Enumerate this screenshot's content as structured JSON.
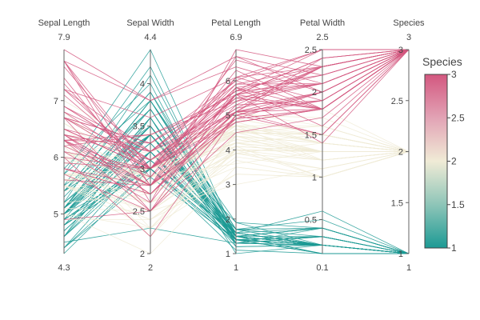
{
  "chart_data": {
    "type": "parcoords",
    "dimensions": [
      {
        "key": "sepal_length",
        "label": "Sepal Length",
        "range": [
          4.3,
          7.9
        ],
        "range_labels": [
          "4.3",
          "7.9"
        ],
        "ticks": [
          5,
          6,
          7
        ],
        "tick_labels": [
          "5",
          "6",
          "7"
        ]
      },
      {
        "key": "sepal_width",
        "label": "Sepal Width",
        "range": [
          2,
          4.4
        ],
        "range_labels": [
          "2",
          "4.4"
        ],
        "ticks": [
          2,
          2.5,
          3,
          3.5,
          4
        ],
        "tick_labels": [
          "2",
          "2.5",
          "3",
          "3.5",
          "4"
        ]
      },
      {
        "key": "petal_length",
        "label": "Petal Length",
        "range": [
          1,
          6.9
        ],
        "range_labels": [
          "1",
          "6.9"
        ],
        "ticks": [
          1,
          2,
          3,
          4,
          5,
          6
        ],
        "tick_labels": [
          "1",
          "2",
          "3",
          "4",
          "5",
          "6"
        ]
      },
      {
        "key": "petal_width",
        "label": "Petal Width",
        "range": [
          0.1,
          2.5
        ],
        "range_labels": [
          "0.1",
          "2.5"
        ],
        "ticks": [
          0.5,
          1,
          1.5,
          2,
          2.5
        ],
        "tick_labels": [
          "0.5",
          "1",
          "1.5",
          "2",
          "2.5"
        ]
      },
      {
        "key": "species",
        "label": "Species",
        "range": [
          1,
          3
        ],
        "range_labels": [
          "1",
          "3"
        ],
        "ticks": [
          1,
          1.5,
          2,
          2.5,
          3
        ],
        "tick_labels": [
          "1",
          "1.5",
          "2",
          "2.5",
          "3"
        ]
      }
    ],
    "records": [
      [
        5.1,
        3.5,
        1.4,
        0.2,
        1
      ],
      [
        4.9,
        3.0,
        1.4,
        0.2,
        1
      ],
      [
        4.7,
        3.2,
        1.3,
        0.2,
        1
      ],
      [
        4.6,
        3.1,
        1.5,
        0.2,
        1
      ],
      [
        5.0,
        3.6,
        1.4,
        0.2,
        1
      ],
      [
        5.4,
        3.9,
        1.7,
        0.4,
        1
      ],
      [
        4.6,
        3.4,
        1.4,
        0.3,
        1
      ],
      [
        5.0,
        3.4,
        1.5,
        0.2,
        1
      ],
      [
        4.4,
        2.9,
        1.4,
        0.2,
        1
      ],
      [
        4.9,
        3.1,
        1.5,
        0.1,
        1
      ],
      [
        5.4,
        3.7,
        1.5,
        0.2,
        1
      ],
      [
        4.8,
        3.4,
        1.6,
        0.2,
        1
      ],
      [
        4.8,
        3.0,
        1.4,
        0.1,
        1
      ],
      [
        4.3,
        3.0,
        1.1,
        0.1,
        1
      ],
      [
        5.8,
        4.0,
        1.2,
        0.2,
        1
      ],
      [
        5.7,
        4.4,
        1.5,
        0.4,
        1
      ],
      [
        5.4,
        3.9,
        1.3,
        0.4,
        1
      ],
      [
        5.1,
        3.5,
        1.4,
        0.3,
        1
      ],
      [
        5.7,
        3.8,
        1.7,
        0.3,
        1
      ],
      [
        5.1,
        3.8,
        1.5,
        0.3,
        1
      ],
      [
        5.4,
        3.4,
        1.7,
        0.2,
        1
      ],
      [
        5.1,
        3.7,
        1.5,
        0.4,
        1
      ],
      [
        4.6,
        3.6,
        1.0,
        0.2,
        1
      ],
      [
        5.1,
        3.3,
        1.7,
        0.5,
        1
      ],
      [
        4.8,
        3.4,
        1.9,
        0.2,
        1
      ],
      [
        5.0,
        3.0,
        1.6,
        0.2,
        1
      ],
      [
        5.0,
        3.4,
        1.6,
        0.4,
        1
      ],
      [
        5.2,
        3.5,
        1.5,
        0.2,
        1
      ],
      [
        5.2,
        3.4,
        1.4,
        0.2,
        1
      ],
      [
        4.7,
        3.2,
        1.6,
        0.2,
        1
      ],
      [
        4.8,
        3.1,
        1.6,
        0.2,
        1
      ],
      [
        5.4,
        3.4,
        1.5,
        0.4,
        1
      ],
      [
        5.2,
        4.1,
        1.5,
        0.1,
        1
      ],
      [
        5.5,
        4.2,
        1.4,
        0.2,
        1
      ],
      [
        4.9,
        3.1,
        1.5,
        0.2,
        1
      ],
      [
        5.0,
        3.2,
        1.2,
        0.2,
        1
      ],
      [
        5.5,
        3.5,
        1.3,
        0.2,
        1
      ],
      [
        4.9,
        3.6,
        1.4,
        0.1,
        1
      ],
      [
        4.4,
        3.0,
        1.3,
        0.2,
        1
      ],
      [
        5.1,
        3.4,
        1.5,
        0.2,
        1
      ],
      [
        5.0,
        3.5,
        1.3,
        0.3,
        1
      ],
      [
        4.5,
        2.3,
        1.3,
        0.3,
        1
      ],
      [
        4.4,
        3.2,
        1.3,
        0.2,
        1
      ],
      [
        5.0,
        3.5,
        1.6,
        0.6,
        1
      ],
      [
        5.1,
        3.8,
        1.9,
        0.4,
        1
      ],
      [
        4.8,
        3.0,
        1.4,
        0.3,
        1
      ],
      [
        5.1,
        3.8,
        1.6,
        0.2,
        1
      ],
      [
        4.6,
        3.2,
        1.4,
        0.2,
        1
      ],
      [
        5.3,
        3.7,
        1.5,
        0.2,
        1
      ],
      [
        5.0,
        3.3,
        1.4,
        0.2,
        1
      ],
      [
        7.0,
        3.2,
        4.7,
        1.4,
        2
      ],
      [
        6.4,
        3.2,
        4.5,
        1.5,
        2
      ],
      [
        6.9,
        3.1,
        4.9,
        1.5,
        2
      ],
      [
        5.5,
        2.3,
        4.0,
        1.3,
        2
      ],
      [
        6.5,
        2.8,
        4.6,
        1.5,
        2
      ],
      [
        5.7,
        2.8,
        4.5,
        1.3,
        2
      ],
      [
        6.3,
        3.3,
        4.7,
        1.6,
        2
      ],
      [
        4.9,
        2.4,
        3.3,
        1.0,
        2
      ],
      [
        6.6,
        2.9,
        4.6,
        1.3,
        2
      ],
      [
        5.2,
        2.7,
        3.9,
        1.4,
        2
      ],
      [
        5.0,
        2.0,
        3.5,
        1.0,
        2
      ],
      [
        5.9,
        3.0,
        4.2,
        1.5,
        2
      ],
      [
        6.0,
        2.2,
        4.0,
        1.0,
        2
      ],
      [
        6.1,
        2.9,
        4.7,
        1.4,
        2
      ],
      [
        5.6,
        2.9,
        3.6,
        1.3,
        2
      ],
      [
        6.7,
        3.1,
        4.4,
        1.4,
        2
      ],
      [
        5.6,
        3.0,
        4.5,
        1.5,
        2
      ],
      [
        5.8,
        2.7,
        4.1,
        1.0,
        2
      ],
      [
        6.2,
        2.2,
        4.5,
        1.5,
        2
      ],
      [
        5.6,
        2.5,
        3.9,
        1.1,
        2
      ],
      [
        5.9,
        3.2,
        4.8,
        1.8,
        2
      ],
      [
        6.1,
        2.8,
        4.0,
        1.3,
        2
      ],
      [
        6.3,
        2.5,
        4.9,
        1.5,
        2
      ],
      [
        6.1,
        2.8,
        4.7,
        1.2,
        2
      ],
      [
        6.4,
        2.9,
        4.3,
        1.3,
        2
      ],
      [
        6.6,
        3.0,
        4.4,
        1.4,
        2
      ],
      [
        6.8,
        2.8,
        4.8,
        1.4,
        2
      ],
      [
        6.7,
        3.0,
        5.0,
        1.7,
        2
      ],
      [
        6.0,
        2.9,
        4.5,
        1.5,
        2
      ],
      [
        5.7,
        2.6,
        3.5,
        1.0,
        2
      ],
      [
        5.5,
        2.4,
        3.8,
        1.1,
        2
      ],
      [
        5.5,
        2.4,
        3.7,
        1.0,
        2
      ],
      [
        5.8,
        2.7,
        3.9,
        1.2,
        2
      ],
      [
        6.0,
        2.7,
        5.1,
        1.6,
        2
      ],
      [
        5.4,
        3.0,
        4.5,
        1.5,
        2
      ],
      [
        6.0,
        3.4,
        4.5,
        1.6,
        2
      ],
      [
        6.7,
        3.1,
        4.7,
        1.5,
        2
      ],
      [
        6.3,
        2.3,
        4.4,
        1.3,
        2
      ],
      [
        5.6,
        3.0,
        4.1,
        1.3,
        2
      ],
      [
        5.5,
        2.5,
        4.0,
        1.3,
        2
      ],
      [
        5.5,
        2.6,
        4.4,
        1.2,
        2
      ],
      [
        6.1,
        3.0,
        4.6,
        1.4,
        2
      ],
      [
        5.8,
        2.6,
        4.0,
        1.2,
        2
      ],
      [
        5.0,
        2.3,
        3.3,
        1.0,
        2
      ],
      [
        5.6,
        2.7,
        4.2,
        1.3,
        2
      ],
      [
        5.7,
        3.0,
        4.2,
        1.2,
        2
      ],
      [
        5.7,
        2.9,
        4.2,
        1.3,
        2
      ],
      [
        6.2,
        2.9,
        4.3,
        1.3,
        2
      ],
      [
        5.1,
        2.5,
        3.0,
        1.1,
        2
      ],
      [
        5.7,
        2.8,
        4.1,
        1.3,
        2
      ],
      [
        6.3,
        3.3,
        6.0,
        2.5,
        3
      ],
      [
        5.8,
        2.7,
        5.1,
        1.9,
        3
      ],
      [
        7.1,
        3.0,
        5.9,
        2.1,
        3
      ],
      [
        6.3,
        2.9,
        5.6,
        1.8,
        3
      ],
      [
        6.5,
        3.0,
        5.8,
        2.2,
        3
      ],
      [
        7.6,
        3.0,
        6.6,
        2.1,
        3
      ],
      [
        4.9,
        2.5,
        4.5,
        1.7,
        3
      ],
      [
        7.3,
        2.9,
        6.3,
        1.8,
        3
      ],
      [
        6.7,
        2.5,
        5.8,
        1.8,
        3
      ],
      [
        7.2,
        3.6,
        6.1,
        2.5,
        3
      ],
      [
        6.5,
        3.2,
        5.1,
        2.0,
        3
      ],
      [
        6.4,
        2.7,
        5.3,
        1.9,
        3
      ],
      [
        6.8,
        3.0,
        5.5,
        2.1,
        3
      ],
      [
        5.7,
        2.5,
        5.0,
        2.0,
        3
      ],
      [
        5.8,
        2.8,
        5.1,
        2.4,
        3
      ],
      [
        6.4,
        3.2,
        5.3,
        2.3,
        3
      ],
      [
        6.5,
        3.0,
        5.5,
        1.8,
        3
      ],
      [
        7.7,
        3.8,
        6.7,
        2.2,
        3
      ],
      [
        7.7,
        2.6,
        6.9,
        2.3,
        3
      ],
      [
        6.0,
        2.2,
        5.0,
        1.5,
        3
      ],
      [
        6.9,
        3.2,
        5.7,
        2.3,
        3
      ],
      [
        5.6,
        2.8,
        4.9,
        2.0,
        3
      ],
      [
        7.7,
        2.8,
        6.7,
        2.0,
        3
      ],
      [
        6.3,
        2.7,
        4.9,
        1.8,
        3
      ],
      [
        6.7,
        3.3,
        5.7,
        2.1,
        3
      ],
      [
        7.2,
        3.2,
        6.0,
        1.8,
        3
      ],
      [
        6.2,
        2.8,
        4.8,
        1.8,
        3
      ],
      [
        6.1,
        3.0,
        4.9,
        1.8,
        3
      ],
      [
        6.4,
        2.8,
        5.6,
        2.1,
        3
      ],
      [
        7.2,
        3.0,
        5.8,
        1.6,
        3
      ],
      [
        7.4,
        2.8,
        6.1,
        1.9,
        3
      ],
      [
        7.9,
        3.8,
        6.4,
        2.0,
        3
      ],
      [
        6.4,
        2.8,
        5.6,
        2.2,
        3
      ],
      [
        6.3,
        2.8,
        5.1,
        1.5,
        3
      ],
      [
        6.1,
        2.6,
        5.6,
        1.4,
        3
      ],
      [
        7.7,
        3.0,
        6.1,
        2.3,
        3
      ],
      [
        6.3,
        3.4,
        5.6,
        2.4,
        3
      ],
      [
        6.4,
        3.1,
        5.5,
        1.8,
        3
      ],
      [
        6.0,
        3.0,
        4.8,
        1.8,
        3
      ],
      [
        6.9,
        3.1,
        5.4,
        2.1,
        3
      ],
      [
        6.7,
        3.1,
        5.6,
        2.4,
        3
      ],
      [
        6.9,
        3.1,
        5.1,
        2.3,
        3
      ],
      [
        5.8,
        2.7,
        5.1,
        1.9,
        3
      ],
      [
        6.8,
        3.2,
        5.9,
        2.3,
        3
      ],
      [
        6.7,
        3.3,
        5.7,
        2.5,
        3
      ],
      [
        6.7,
        3.0,
        5.2,
        2.3,
        3
      ],
      [
        6.3,
        2.5,
        5.0,
        1.9,
        3
      ],
      [
        6.5,
        3.0,
        5.2,
        2.0,
        3
      ],
      [
        6.2,
        3.4,
        5.4,
        2.3,
        3
      ],
      [
        5.9,
        3.0,
        5.1,
        1.8,
        3
      ]
    ],
    "line_color_dimension": "species",
    "colorscale": [
      [
        0,
        "#1c9a94"
      ],
      [
        0.25,
        "#8ec5b8"
      ],
      [
        0.5,
        "#f0ebd6"
      ],
      [
        0.75,
        "#e2a3b5"
      ],
      [
        1,
        "#d3577f"
      ]
    ],
    "colorbar": {
      "title": "Species",
      "range": [
        1,
        3
      ],
      "ticks": [
        1,
        1.5,
        2,
        2.5,
        3
      ],
      "tick_labels": [
        "1",
        "1.5",
        "2",
        "2.5",
        "3"
      ]
    }
  }
}
